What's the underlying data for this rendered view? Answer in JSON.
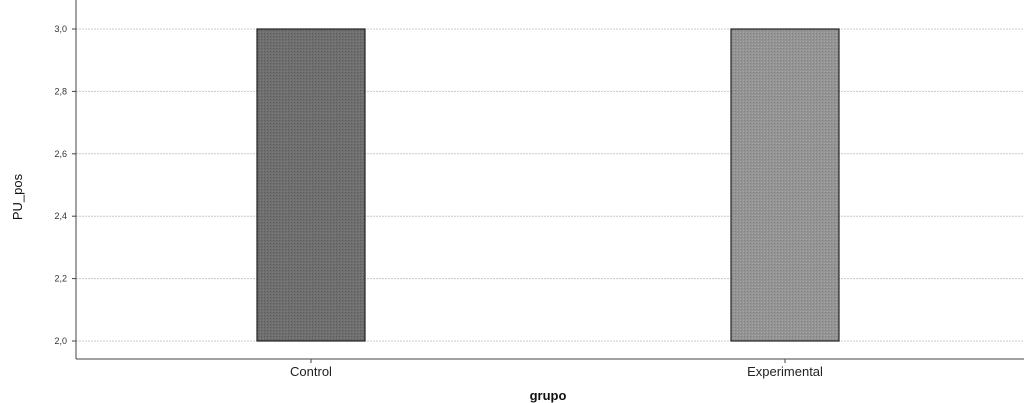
{
  "chart_data": {
    "type": "bar",
    "categories": [
      "Control",
      "Experimental"
    ],
    "values": [
      3.0,
      3.0
    ],
    "xlabel": "grupo",
    "ylabel": "PU_pos",
    "ylim": [
      2.0,
      3.0
    ],
    "yticks": [
      "2,0",
      "2,2",
      "2,4",
      "2,6",
      "2,8",
      "3,0"
    ],
    "grid": true,
    "colors": [
      "#6b6b6b",
      "#8e8e8e"
    ]
  }
}
